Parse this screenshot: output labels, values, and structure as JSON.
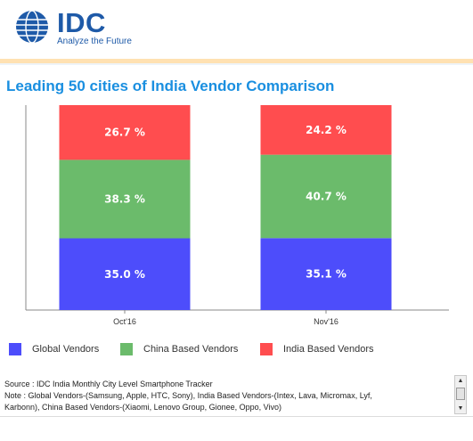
{
  "header": {
    "logo_text": "IDC",
    "tagline": "Analyze the Future"
  },
  "title": "Leading 50 cities of India Vendor Comparison",
  "chart_data": {
    "type": "bar",
    "stacked": true,
    "title": "Leading 50 cities of India Vendor Comparison",
    "categories": [
      "Oct'16",
      "Nov'16"
    ],
    "series": [
      {
        "name": "Global Vendors",
        "color": "#4d4dfb",
        "values": [
          35.0,
          35.1
        ],
        "labels": [
          "35.0 %",
          "35.1 %"
        ]
      },
      {
        "name": "China Based Vendors",
        "color": "#6bbb6b",
        "values": [
          38.3,
          40.7
        ],
        "labels": [
          "38.3 %",
          "40.7 %"
        ]
      },
      {
        "name": "India Based Vendors",
        "color": "#ff4d4f",
        "values": [
          26.7,
          24.2
        ],
        "labels": [
          "26.7 %",
          "24.2 %"
        ]
      }
    ],
    "ylim": [
      0,
      100
    ],
    "grid": false,
    "legend_position": "bottom"
  },
  "footer": {
    "source": "Source : IDC India Monthly City Level Smartphone Tracker",
    "note_line1": "Note : Global Vendors-(Samsung, Apple, HTC, Sony), India Based Vendors-(Intex, Lava, Micromax, Lyf,",
    "note_line2": "Karbonn), China Based Vendors-(Xiaomi, Lenovo Group, Gionee, Oppo, Vivo)"
  },
  "scrollbar": {
    "up_arrow": "▲",
    "down_arrow": "▼"
  }
}
